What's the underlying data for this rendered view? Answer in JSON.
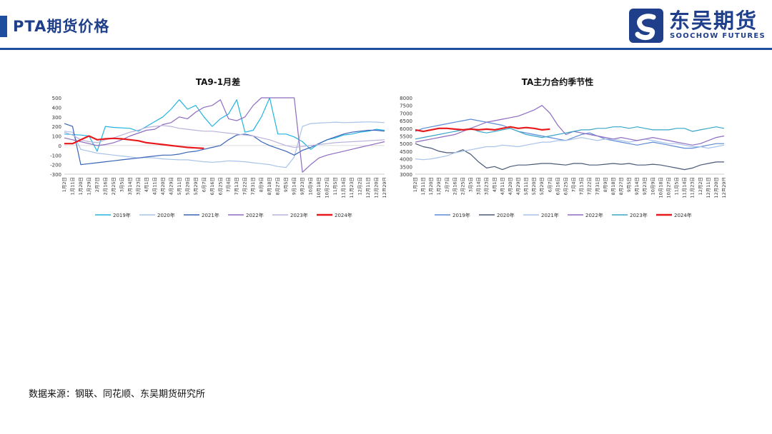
{
  "header": {
    "title": "PTA期货价格",
    "logo_cn": "东吴期货",
    "logo_en": "SOOCHOW FUTURES",
    "accent_color": "#1f4e9e",
    "logo_icon": "soochow-s-logo-icon"
  },
  "footer": {
    "source": "数据来源：钢联、同花顺、东吴期货研究所"
  },
  "chart_data": [
    {
      "type": "line",
      "title": "TA9-1月差",
      "xlabel": "",
      "ylabel": "",
      "ylim": [
        -300,
        500
      ],
      "yticks": [
        -300,
        -200,
        -100,
        0,
        100,
        200,
        300,
        400,
        500
      ],
      "x_tick_labels": [
        "1月2日",
        "1月11日",
        "1月20日",
        "1月29日",
        "2月7日",
        "2月16日",
        "2月25日",
        "3月5日",
        "3月14日",
        "3月23日",
        "4月1日",
        "4月11日",
        "4月20日",
        "4月29日",
        "5月11日",
        "5月20日",
        "5月29日",
        "6月7日",
        "6月16日",
        "6月25日",
        "7月4日",
        "7月13日",
        "7月22日",
        "7月31日",
        "8月9日",
        "8月18日",
        "8月27日",
        "9月5日",
        "9月14日",
        "9月23日",
        "10月9日",
        "10月18日",
        "10月27日",
        "11月5日",
        "11月14日",
        "11月23日",
        "12月2日",
        "12月11日",
        "12月20日",
        "12月29日"
      ],
      "grid": false,
      "legend_position": "bottom",
      "series": [
        {
          "name": "2019年",
          "color": "#22b4e0",
          "width": 1.2,
          "x": [
            0,
            2,
            3,
            4,
            5,
            6,
            8,
            9,
            10,
            11,
            12,
            13,
            14,
            15,
            16,
            17,
            18,
            19,
            20,
            21,
            22,
            23,
            24,
            25,
            26,
            27,
            28,
            29,
            30,
            31,
            32,
            33,
            34,
            35,
            36,
            37,
            38,
            39
          ],
          "values": [
            120,
            110,
            100,
            -60,
            200,
            190,
            180,
            150,
            200,
            250,
            300,
            380,
            480,
            380,
            420,
            300,
            200,
            280,
            330,
            480,
            140,
            160,
            300,
            500,
            120,
            120,
            90,
            40,
            -40,
            20,
            60,
            80,
            110,
            120,
            140,
            150,
            170,
            160
          ]
        },
        {
          "name": "2020年",
          "color": "#a9c3e8",
          "width": 1.2,
          "x": [
            0,
            1,
            2,
            3,
            4,
            5,
            6,
            7,
            8,
            9,
            10,
            11,
            12,
            13,
            14,
            15,
            16,
            17,
            18,
            19,
            20,
            21,
            22,
            23,
            24,
            25,
            26,
            27,
            28,
            29,
            30,
            31,
            32,
            33,
            34,
            35,
            36,
            37,
            38,
            39
          ],
          "values": [
            150,
            140,
            -40,
            -60,
            -80,
            -90,
            -100,
            -110,
            -120,
            -130,
            -125,
            -130,
            -140,
            -145,
            -150,
            -150,
            -160,
            -170,
            -175,
            -170,
            -160,
            -165,
            -170,
            -180,
            -190,
            -200,
            -220,
            -230,
            -120,
            200,
            230,
            235,
            240,
            245,
            240,
            242,
            245,
            248,
            245,
            240
          ]
        },
        {
          "name": "2021年",
          "color": "#3a64b8",
          "width": 1.2,
          "x": [
            0,
            1,
            2,
            3,
            4,
            5,
            6,
            7,
            8,
            9,
            10,
            11,
            12,
            13,
            14,
            15,
            16,
            17,
            18,
            19,
            20,
            21,
            22,
            23,
            24,
            25,
            26,
            27,
            28,
            29,
            30,
            31,
            32,
            33,
            34,
            35,
            36,
            37,
            38,
            39
          ],
          "values": [
            230,
            200,
            -200,
            -190,
            -180,
            -170,
            -160,
            -150,
            -140,
            -130,
            -120,
            -110,
            -100,
            -100,
            -90,
            -70,
            -60,
            -40,
            -20,
            0,
            60,
            110,
            120,
            100,
            40,
            0,
            -30,
            -60,
            -100,
            -50,
            -20,
            20,
            60,
            90,
            120,
            140,
            150,
            160,
            160,
            150
          ]
        },
        {
          "name": "2022年",
          "color": "#8e6cc0",
          "width": 1.2,
          "x": [
            0,
            1,
            2,
            3,
            4,
            5,
            6,
            7,
            8,
            9,
            10,
            11,
            12,
            13,
            14,
            15,
            16,
            17,
            18,
            19,
            20,
            21,
            22,
            23,
            24,
            25,
            26,
            27,
            28,
            29,
            30,
            31,
            32,
            33,
            34,
            35,
            36,
            37,
            38,
            39
          ],
          "values": [
            80,
            60,
            40,
            20,
            0,
            10,
            30,
            60,
            100,
            130,
            160,
            170,
            220,
            240,
            300,
            280,
            350,
            400,
            420,
            480,
            280,
            260,
            300,
            420,
            520,
            520,
            520,
            520,
            520,
            -280,
            -200,
            -130,
            -100,
            -80,
            -60,
            -40,
            -20,
            0,
            20,
            40
          ]
        },
        {
          "name": "2023年",
          "color": "#b9b2dc",
          "width": 1.2,
          "x": [
            0,
            1,
            2,
            3,
            4,
            5,
            6,
            7,
            8,
            9,
            10,
            11,
            12,
            13,
            14,
            15,
            16,
            17,
            18,
            19,
            20,
            21,
            22,
            23,
            24,
            25,
            26,
            27,
            28,
            29,
            30,
            31,
            32,
            33,
            34,
            35,
            36,
            37,
            38,
            39
          ],
          "values": [
            140,
            110,
            60,
            40,
            30,
            60,
            80,
            110,
            140,
            160,
            190,
            200,
            210,
            200,
            180,
            170,
            160,
            150,
            150,
            140,
            130,
            120,
            110,
            100,
            80,
            60,
            30,
            0,
            -20,
            -10,
            0,
            10,
            20,
            30,
            35,
            40,
            45,
            50,
            55,
            60
          ]
        },
        {
          "name": "2024年",
          "color": "#e8191c",
          "width": 2.2,
          "x": [
            0,
            1,
            2,
            3,
            4,
            5,
            6,
            7,
            8,
            9,
            10,
            11,
            12,
            13,
            14,
            15,
            16,
            17
          ],
          "values": [
            20,
            20,
            60,
            100,
            60,
            70,
            75,
            70,
            60,
            50,
            30,
            20,
            10,
            0,
            -10,
            -20,
            -25,
            -30
          ]
        }
      ]
    },
    {
      "type": "line",
      "title": "TA主力合约季节性",
      "xlabel": "",
      "ylabel": "",
      "ylim": [
        3000,
        8000
      ],
      "yticks": [
        3000,
        3500,
        4000,
        4500,
        5000,
        5500,
        6000,
        6500,
        7000,
        7500,
        8000
      ],
      "x_tick_labels": [
        "1月2日",
        "1月11日",
        "1月20日",
        "1月29日",
        "2月7日",
        "2月16日",
        "2月25日",
        "3月5日",
        "3月14日",
        "3月23日",
        "4月1日",
        "4月11日",
        "4月20日",
        "4月29日",
        "5月11日",
        "5月20日",
        "5月29日",
        "6月7日",
        "6月16日",
        "6月25日",
        "7月4日",
        "7月13日",
        "7月22日",
        "7月31日",
        "8月9日",
        "8月18日",
        "8月27日",
        "9月5日",
        "9月14日",
        "9月23日",
        "10月9日",
        "10月18日",
        "10月27日",
        "11月5日",
        "11月14日",
        "11月23日",
        "12月2日",
        "12月11日",
        "12月20日",
        "12月29日"
      ],
      "grid": false,
      "legend_position": "bottom",
      "series": [
        {
          "name": "2019年",
          "color": "#5b8ad6",
          "width": 1.2,
          "x": [
            0,
            1,
            2,
            3,
            4,
            5,
            6,
            7,
            8,
            9,
            10,
            11,
            12,
            13,
            14,
            15,
            16,
            17,
            18,
            19,
            20,
            21,
            22,
            23,
            24,
            25,
            26,
            27,
            28,
            29,
            30,
            31,
            32,
            33,
            34,
            35,
            36,
            37,
            38,
            39
          ],
          "values": [
            5800,
            6000,
            6100,
            6200,
            6300,
            6400,
            6500,
            6600,
            6500,
            6400,
            6300,
            6200,
            6000,
            5800,
            5700,
            5600,
            5500,
            5400,
            5300,
            5200,
            5400,
            5600,
            5700,
            5500,
            5300,
            5200,
            5100,
            5000,
            4900,
            5000,
            5100,
            5000,
            4900,
            4800,
            4700,
            4700,
            4800,
            4900,
            5000,
            5000
          ]
        },
        {
          "name": "2020年",
          "color": "#4a5a78",
          "width": 1.2,
          "x": [
            0,
            1,
            2,
            3,
            4,
            5,
            6,
            7,
            8,
            9,
            10,
            11,
            12,
            13,
            14,
            15,
            16,
            17,
            18,
            19,
            20,
            21,
            22,
            23,
            24,
            25,
            26,
            27,
            28,
            29,
            30,
            31,
            32,
            33,
            34,
            35,
            36,
            37,
            38,
            39
          ],
          "values": [
            5000,
            4800,
            4700,
            4500,
            4400,
            4400,
            4600,
            4300,
            3800,
            3400,
            3500,
            3300,
            3500,
            3600,
            3600,
            3650,
            3700,
            3700,
            3650,
            3600,
            3700,
            3700,
            3600,
            3600,
            3650,
            3700,
            3650,
            3700,
            3600,
            3600,
            3650,
            3600,
            3500,
            3400,
            3300,
            3400,
            3600,
            3700,
            3800,
            3800
          ]
        },
        {
          "name": "2021年",
          "color": "#a9c3e8",
          "width": 1.2,
          "x": [
            0,
            1,
            2,
            3,
            4,
            5,
            6,
            7,
            8,
            9,
            10,
            11,
            12,
            13,
            14,
            15,
            16,
            17,
            18,
            19,
            20,
            21,
            22,
            23,
            24,
            25,
            26,
            27,
            28,
            29,
            30,
            31,
            32,
            33,
            34,
            35,
            36,
            37,
            38,
            39
          ],
          "values": [
            4000,
            3950,
            4000,
            4100,
            4200,
            4400,
            4500,
            4600,
            4700,
            4800,
            4800,
            4900,
            4850,
            4800,
            4900,
            5000,
            5100,
            5100,
            5200,
            5200,
            5300,
            5400,
            5300,
            5200,
            5300,
            5300,
            5200,
            5100,
            5200,
            5300,
            5200,
            5100,
            5000,
            5000,
            4900,
            4800,
            4800,
            4700,
            4800,
            4900
          ]
        },
        {
          "name": "2022年",
          "color": "#8e6cc0",
          "width": 1.2,
          "x": [
            0,
            1,
            2,
            3,
            4,
            5,
            6,
            7,
            8,
            9,
            10,
            11,
            12,
            13,
            14,
            15,
            16,
            17,
            18,
            19,
            20,
            21,
            22,
            23,
            24,
            25,
            26,
            27,
            28,
            29,
            30,
            31,
            32,
            33,
            34,
            35,
            36,
            37,
            38,
            39
          ],
          "values": [
            5100,
            5200,
            5300,
            5400,
            5500,
            5600,
            5800,
            6000,
            6200,
            6400,
            6500,
            6600,
            6700,
            6800,
            7000,
            7200,
            7500,
            7000,
            6200,
            5600,
            5800,
            5700,
            5600,
            5500,
            5400,
            5300,
            5400,
            5300,
            5200,
            5300,
            5400,
            5300,
            5200,
            5100,
            5000,
            4900,
            5000,
            5200,
            5400,
            5500
          ]
        },
        {
          "name": "2023年",
          "color": "#39a6c8",
          "width": 1.2,
          "x": [
            0,
            1,
            2,
            3,
            4,
            5,
            6,
            7,
            8,
            9,
            10,
            11,
            12,
            13,
            14,
            15,
            16,
            17,
            18,
            19,
            20,
            21,
            22,
            23,
            24,
            25,
            26,
            27,
            28,
            29,
            30,
            31,
            32,
            33,
            34,
            35,
            36,
            37,
            38,
            39
          ],
          "values": [
            5300,
            5400,
            5500,
            5600,
            5700,
            5800,
            5900,
            6000,
            5800,
            5700,
            5800,
            5900,
            6000,
            5800,
            5600,
            5500,
            5400,
            5500,
            5600,
            5700,
            5800,
            5900,
            5900,
            6000,
            6000,
            6100,
            6100,
            6000,
            6100,
            6000,
            5900,
            5900,
            5900,
            6000,
            6000,
            5800,
            5900,
            6000,
            6100,
            6000
          ]
        },
        {
          "name": "2024年",
          "color": "#e8191c",
          "width": 2.2,
          "x": [
            0,
            1,
            2,
            3,
            4,
            5,
            6,
            7,
            8,
            9,
            10,
            11,
            12,
            13,
            14,
            15,
            16,
            17
          ],
          "values": [
            5900,
            5800,
            5900,
            6000,
            6000,
            5950,
            5900,
            5950,
            5900,
            5950,
            5900,
            6000,
            6100,
            6000,
            6050,
            6000,
            5900,
            5950
          ]
        }
      ]
    }
  ]
}
